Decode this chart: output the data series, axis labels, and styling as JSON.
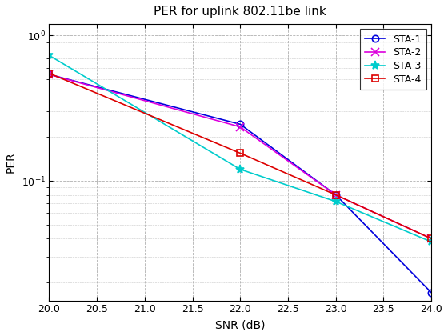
{
  "title": "PER for uplink 802.11be link",
  "xlabel": "SNR (dB)",
  "ylabel": "PER",
  "xlim": [
    20,
    24
  ],
  "ylim_log": [
    0.015,
    1.2
  ],
  "xticks": [
    20,
    20.5,
    21,
    21.5,
    22,
    22.5,
    23,
    23.5,
    24
  ],
  "series": [
    {
      "label": "STA-1",
      "color": "#0000dd",
      "marker": "o",
      "markersize": 6,
      "x": [
        20,
        22,
        23,
        24
      ],
      "y": [
        0.54,
        0.245,
        0.08,
        0.017
      ]
    },
    {
      "label": "STA-2",
      "color": "#dd00dd",
      "marker": "x",
      "markersize": 7,
      "x": [
        20,
        22,
        23,
        24
      ],
      "y": [
        0.54,
        0.235,
        0.08,
        0.04
      ]
    },
    {
      "label": "STA-3",
      "color": "#00cccc",
      "marker": "*",
      "markersize": 8,
      "x": [
        20,
        22,
        23,
        24
      ],
      "y": [
        0.73,
        0.12,
        0.072,
        0.038
      ]
    },
    {
      "label": "STA-4",
      "color": "#dd0000",
      "marker": "s",
      "markersize": 6,
      "x": [
        20,
        22,
        23,
        24
      ],
      "y": [
        0.55,
        0.155,
        0.08,
        0.04
      ]
    }
  ],
  "legend_loc": "upper right",
  "background_color": "#ffffff",
  "grid_color": "#b0b0b0",
  "title_fontsize": 11,
  "label_fontsize": 10,
  "tick_fontsize": 9
}
